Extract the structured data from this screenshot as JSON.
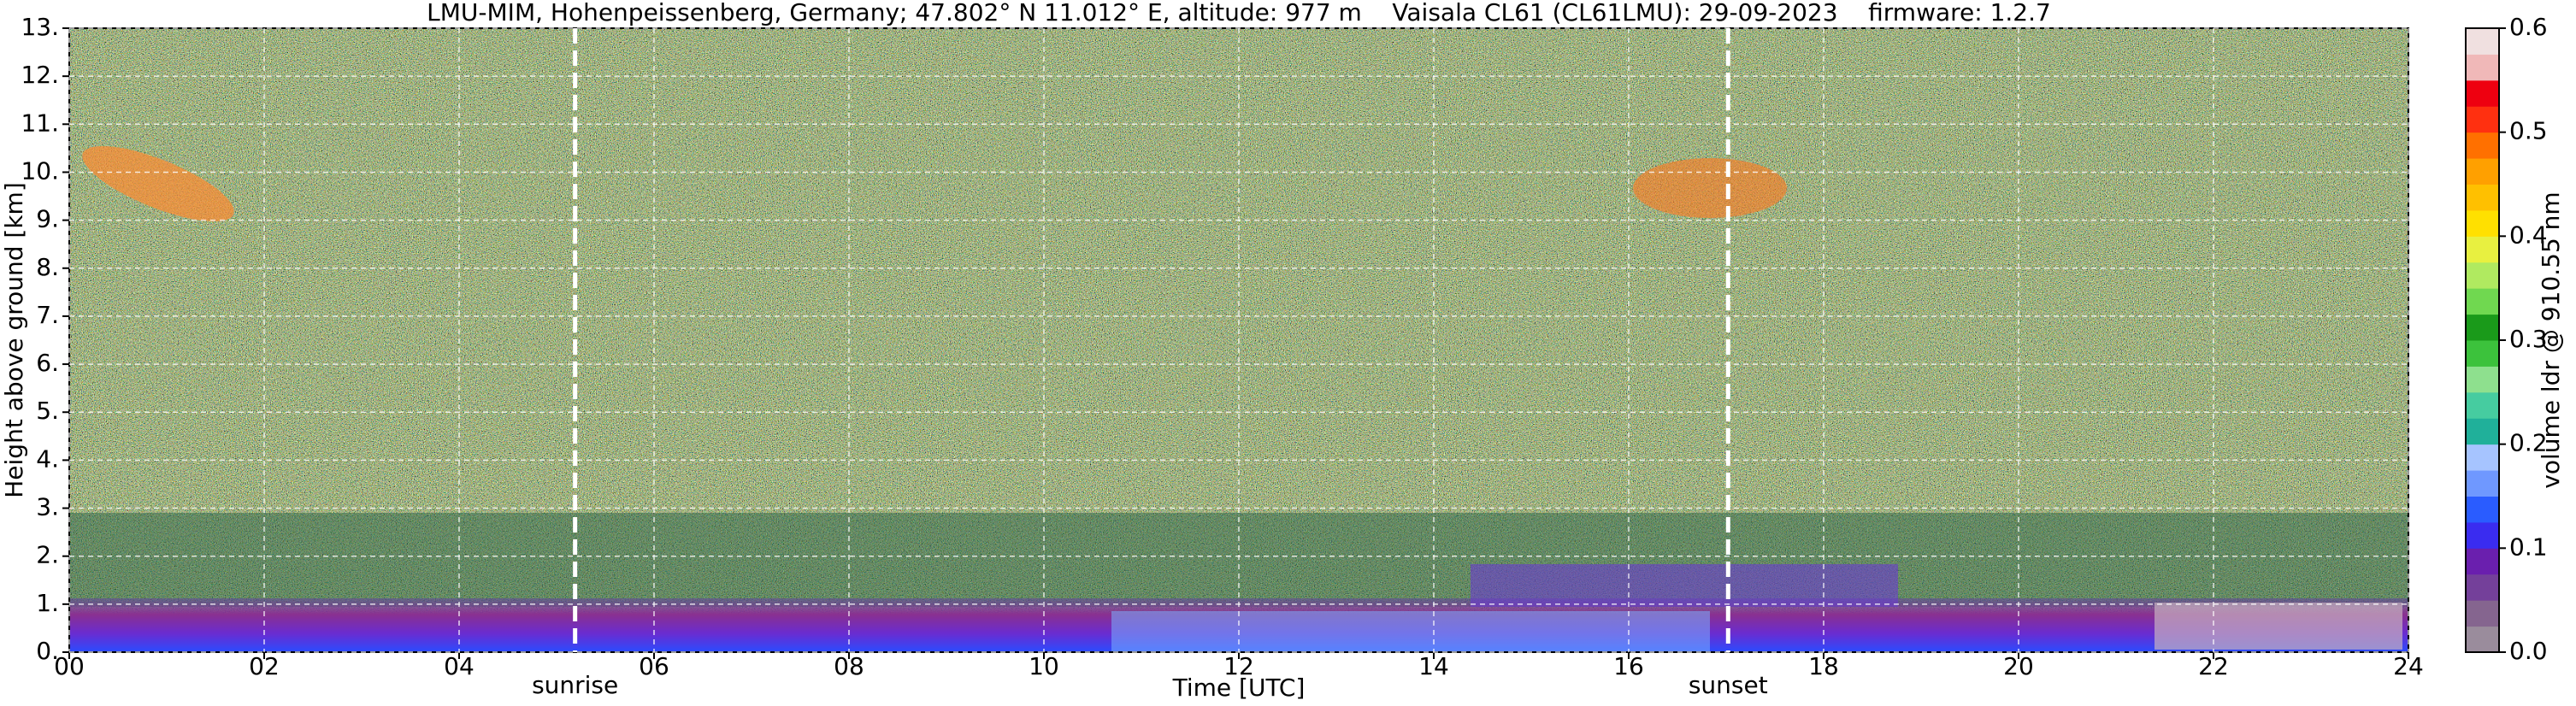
{
  "chart_data": {
    "type": "heatmap",
    "title": "LMU-MIM, Hohenpeissenberg, Germany; 47.802° N 11.012° E, altitude: 977 m    Vaisala CL61 (CL61LMU): 29-09-2023    firmware: 1.2.7",
    "x_label": "Time [UTC]",
    "y_label": "Height above ground [km]",
    "xlim": [
      0,
      24
    ],
    "xticks": [
      {
        "value": 0,
        "label": "00"
      },
      {
        "value": 2,
        "label": "02"
      },
      {
        "value": 4,
        "label": "04"
      },
      {
        "value": 6,
        "label": "06"
      },
      {
        "value": 8,
        "label": "08"
      },
      10,
      12,
      14,
      16,
      18,
      20,
      22,
      24
    ],
    "ylim": [
      0,
      13
    ],
    "yticks": [
      {
        "value": 0,
        "label": "0."
      },
      {
        "value": 1,
        "label": "1."
      },
      {
        "value": 2,
        "label": "2."
      },
      {
        "value": 3,
        "label": "3."
      },
      {
        "value": 4,
        "label": "4."
      },
      {
        "value": 5,
        "label": "5."
      },
      {
        "value": 6,
        "label": "6."
      },
      {
        "value": 7,
        "label": "7."
      },
      {
        "value": 8,
        "label": "8."
      },
      {
        "value": 9,
        "label": "9."
      },
      {
        "value": 10,
        "label": "10."
      },
      {
        "value": 11,
        "label": "11."
      },
      {
        "value": 12,
        "label": "12."
      },
      {
        "value": 13,
        "label": "13."
      }
    ],
    "grid": true,
    "annotations": [
      {
        "text": "sunrise",
        "x": 5.19
      },
      {
        "text": "sunset",
        "x": 17.02
      }
    ],
    "colorbar": {
      "label": "volume ldr @ 910.55 nm",
      "lim": [
        0,
        0.6
      ],
      "ticks": [
        {
          "value": 0,
          "label": "0.0"
        },
        0.1,
        0.2,
        0.3,
        0.4,
        0.5,
        0.6
      ],
      "colors": [
        "#9a8c9c",
        "#85658f",
        "#74409a",
        "#6a1fae",
        "#3a2cf0",
        "#2a5cff",
        "#6f98ff",
        "#a6c4ff",
        "#20b09a",
        "#46cca0",
        "#8ee08e",
        "#3cc23c",
        "#1a9a1a",
        "#70d850",
        "#b0ea60",
        "#e8f040",
        "#ffe000",
        "#ffc000",
        "#ffa000",
        "#ff7000",
        "#ff3010",
        "#ee0010",
        "#f0b8b8",
        "#f0e0e0"
      ]
    }
  }
}
